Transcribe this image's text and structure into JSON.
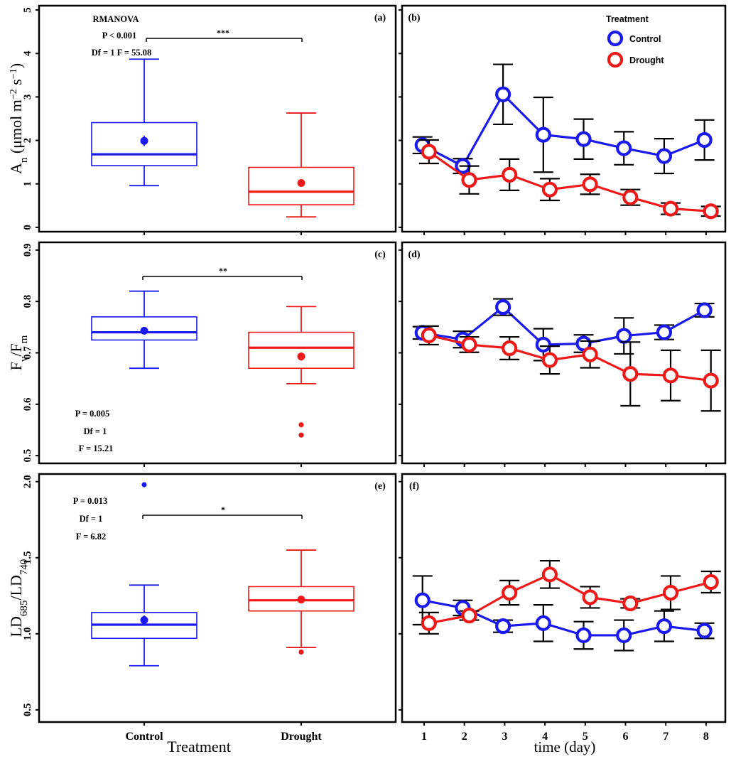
{
  "figure": {
    "left_xlabel": "Treatment",
    "right_xlabel": "time (day)",
    "box_categories": [
      "Control",
      "Drought"
    ],
    "days": [
      1,
      2,
      3,
      4,
      5,
      6,
      7,
      8
    ],
    "legend": {
      "title": "Treatment",
      "items": [
        {
          "label": "Control",
          "color": "#1a1aee"
        },
        {
          "label": "Drought",
          "color": "#ee1a1a"
        }
      ]
    }
  },
  "chart_data": [
    {
      "type": "box",
      "panel_label": "(a)",
      "ylabel": "A_n (μmol m^-2 s^-1)",
      "ylim": [
        -0.1,
        5.1
      ],
      "yticks": [
        0,
        1,
        2,
        3,
        4,
        5
      ],
      "stats_text": [
        "RMANOVA",
        "P < 0.001",
        "Df = 1  F = 55.08"
      ],
      "significance": "***",
      "boxes": [
        {
          "category": "Control",
          "color": "#1a1aee",
          "min": 0.96,
          "q1": 1.42,
          "median": 1.68,
          "q3": 2.41,
          "max": 3.87,
          "mean": 1.99,
          "mean_err": 0.12,
          "outliers": []
        },
        {
          "category": "Drought",
          "color": "#ee1a1a",
          "min": 0.24,
          "q1": 0.52,
          "median": 0.82,
          "q3": 1.38,
          "max": 2.63,
          "mean": 1.02,
          "mean_err": 0.08,
          "outliers": []
        }
      ]
    },
    {
      "type": "line",
      "panel_label": "(b)",
      "ylim": [
        -0.1,
        5.1
      ],
      "x": [
        1,
        2,
        3,
        4,
        5,
        6,
        7,
        8
      ],
      "series": [
        {
          "name": "Control",
          "color": "#1a1aee",
          "values": [
            1.89,
            1.41,
            3.06,
            2.13,
            2.03,
            1.82,
            1.64,
            2.01
          ],
          "errors": [
            0.19,
            0.17,
            0.69,
            0.86,
            0.46,
            0.38,
            0.4,
            0.46
          ]
        },
        {
          "name": "Drought",
          "color": "#ee1a1a",
          "values": [
            1.74,
            1.09,
            1.21,
            0.87,
            0.99,
            0.69,
            0.43,
            0.37
          ],
          "errors": [
            0.27,
            0.32,
            0.36,
            0.25,
            0.23,
            0.18,
            0.13,
            0.11
          ]
        }
      ]
    },
    {
      "type": "box",
      "panel_label": "(c)",
      "ylabel": "F_v/F_m",
      "ylim": [
        0.485,
        0.915
      ],
      "yticks": [
        0.5,
        0.6,
        0.7,
        0.8,
        0.9
      ],
      "stats_text": [
        "P = 0.005",
        "Df = 1",
        "F = 15.21"
      ],
      "significance": "**",
      "boxes": [
        {
          "category": "Control",
          "color": "#1a1aee",
          "min": 0.67,
          "q1": 0.725,
          "median": 0.74,
          "q3": 0.77,
          "max": 0.82,
          "mean": 0.743,
          "mean_err": 0.004,
          "outliers": []
        },
        {
          "category": "Drought",
          "color": "#ee1a1a",
          "min": 0.64,
          "q1": 0.67,
          "median": 0.71,
          "q3": 0.74,
          "max": 0.79,
          "mean": 0.693,
          "mean_err": 0.008,
          "outliers": [
            0.56,
            0.54
          ]
        }
      ]
    },
    {
      "type": "line",
      "panel_label": "(d)",
      "ylim": [
        0.485,
        0.915
      ],
      "x": [
        1,
        2,
        3,
        4,
        5,
        6,
        7,
        8
      ],
      "series": [
        {
          "name": "Control",
          "color": "#1a1aee",
          "values": [
            0.739,
            0.726,
            0.789,
            0.716,
            0.718,
            0.733,
            0.74,
            0.783
          ],
          "errors": [
            0.012,
            0.016,
            0.016,
            0.031,
            0.017,
            0.035,
            0.014,
            0.013
          ]
        },
        {
          "name": "Drought",
          "color": "#ee1a1a",
          "values": [
            0.734,
            0.716,
            0.709,
            0.686,
            0.697,
            0.659,
            0.656,
            0.646
          ],
          "errors": [
            0.018,
            0.015,
            0.022,
            0.027,
            0.026,
            0.062,
            0.049,
            0.059
          ]
        }
      ]
    },
    {
      "type": "box",
      "panel_label": "(e)",
      "ylabel": "LD_685/LD_740",
      "ylim": [
        0.42,
        2.05
      ],
      "yticks": [
        0.5,
        1.0,
        1.5,
        2.0
      ],
      "ytick_labels": [
        "0.5",
        "1.0",
        "1.5",
        "2.0"
      ],
      "stats_text": [
        "P = 0.013",
        "Df = 1",
        "F = 6.82"
      ],
      "significance": "*",
      "boxes": [
        {
          "category": "Control",
          "color": "#1a1aee",
          "min": 0.79,
          "q1": 0.97,
          "median": 1.06,
          "q3": 1.14,
          "max": 1.32,
          "mean": 1.09,
          "mean_err": 0.03,
          "outliers": [
            1.98
          ]
        },
        {
          "category": "Drought",
          "color": "#ee1a1a",
          "min": 0.91,
          "q1": 1.15,
          "median": 1.22,
          "q3": 1.31,
          "max": 1.55,
          "mean": 1.225,
          "mean_err": 0.02,
          "outliers": [
            0.88
          ]
        }
      ]
    },
    {
      "type": "line",
      "panel_label": "(f)",
      "ylim": [
        0.42,
        2.05
      ],
      "x": [
        1,
        2,
        3,
        4,
        5,
        6,
        7,
        8
      ],
      "series": [
        {
          "name": "Control",
          "color": "#1a1aee",
          "values": [
            1.22,
            1.17,
            1.05,
            1.07,
            0.99,
            0.99,
            1.05,
            1.02
          ],
          "errors": [
            0.16,
            0.05,
            0.04,
            0.12,
            0.09,
            0.1,
            0.1,
            0.05
          ]
        },
        {
          "name": "Drought",
          "color": "#ee1a1a",
          "values": [
            1.07,
            1.12,
            1.27,
            1.39,
            1.24,
            1.2,
            1.27,
            1.34
          ],
          "errors": [
            0.07,
            0.03,
            0.08,
            0.09,
            0.07,
            0.03,
            0.11,
            0.07
          ]
        }
      ]
    }
  ]
}
